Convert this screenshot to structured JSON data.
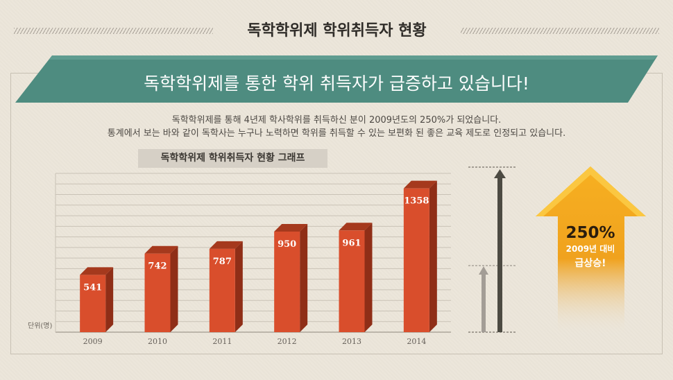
{
  "header": {
    "title": "독학학위제 학위취득자 현황"
  },
  "banner": {
    "headline": "독학학위제를 통한 학위 취득자가 급증하고 있습니다!",
    "color": "#4e8c80"
  },
  "description": {
    "line1": "독학학위제를 통해 4년제 학사학위를 취득하신 분이 2009년도의 250%가 되었습니다.",
    "line2": "통계에서 보는 바와 같이 독학사는 누구나 노력하면 학위를 취득할 수 있는 보편화 된 좋은 교육 제도로 인정되고 있습니다."
  },
  "chart_data": {
    "type": "bar",
    "title": "독학학위제 학위취득자 현황 그래프",
    "unit_label": "단위(명)",
    "categories": [
      "2009",
      "2010",
      "2011",
      "2012",
      "2013",
      "2014"
    ],
    "values": [
      541,
      742,
      787,
      950,
      961,
      1358
    ],
    "ylim": [
      0,
      1500
    ],
    "grid": true,
    "bar_color": "#d94e2c"
  },
  "badge": {
    "percent": "250%",
    "line2": "2009년 대비",
    "line3": "급상승!",
    "color": "#f0a21e"
  }
}
